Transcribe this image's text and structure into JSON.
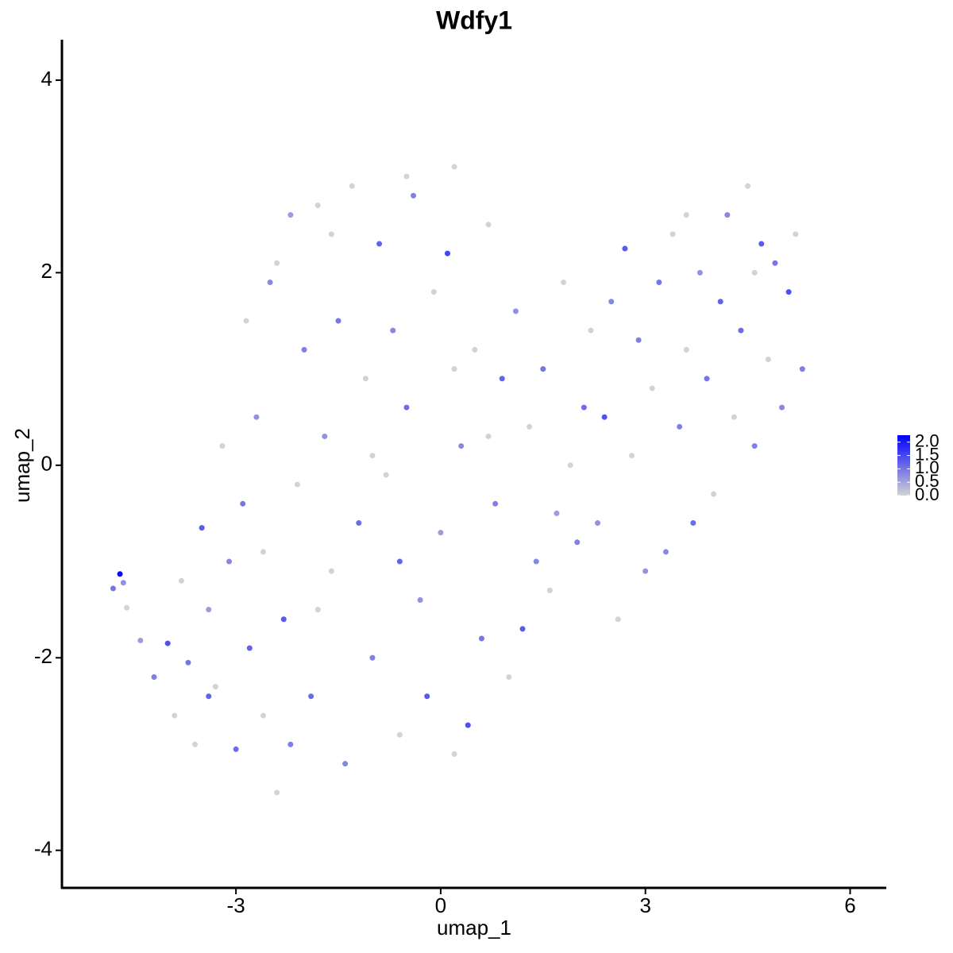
{
  "chart_data": {
    "type": "scatter",
    "title": "Wdfy1",
    "xlabel": "umap_1",
    "ylabel": "umap_2",
    "xlim": [
      -5.55,
      6.53
    ],
    "xticks": [
      -3,
      0,
      3,
      6
    ],
    "ylim": [
      -4.39,
      4.42
    ],
    "yticks": [
      -4,
      -2,
      0,
      2,
      4
    ],
    "grid": false,
    "colorbar": {
      "low": "#d3d3d3",
      "high": "#0000ff",
      "lim": [
        0,
        2.26
      ],
      "ticks": [
        {
          "value": 0,
          "label": "0.0"
        },
        {
          "value": 0.5,
          "label": "0.5"
        },
        {
          "value": 1,
          "label": "1.0"
        },
        {
          "value": 1.5,
          "label": "1.5"
        },
        {
          "value": 2,
          "label": "2.0"
        }
      ]
    },
    "x": [
      -4.7,
      -4.8,
      -4.65,
      -4.6,
      -4.4,
      -4.2,
      -4.0,
      -3.9,
      -3.7,
      -3.6,
      -3.5,
      -3.4,
      -3.3,
      -3.2,
      -3.1,
      -3.0,
      -2.9,
      -2.85,
      -2.8,
      -2.7,
      -2.6,
      -2.5,
      -2.4,
      -2.3,
      -2.2,
      -2.1,
      -2.0,
      -1.9,
      -1.8,
      -1.7,
      -1.6,
      -1.5,
      -1.4,
      -1.3,
      -1.2,
      -1.1,
      -1.0,
      -0.9,
      -0.8,
      -0.7,
      -0.6,
      -0.5,
      -0.4,
      -0.3,
      -0.2,
      -0.1,
      0.0,
      0.1,
      0.2,
      0.3,
      0.4,
      0.5,
      0.6,
      0.7,
      0.8,
      0.9,
      1.0,
      1.1,
      1.2,
      1.3,
      1.4,
      1.5,
      1.6,
      1.7,
      1.8,
      2.0,
      2.1,
      2.2,
      2.3,
      2.4,
      2.5,
      2.6,
      2.7,
      2.8,
      2.9,
      3.0,
      3.1,
      3.2,
      3.3,
      3.4,
      3.5,
      3.6,
      3.7,
      3.8,
      3.9,
      4.0,
      4.1,
      4.2,
      4.3,
      4.4,
      4.5,
      4.6,
      4.7,
      4.8,
      4.9,
      5.0,
      5.1,
      5.2,
      5.3,
      -3.8,
      -3.4,
      -2.6,
      -2.2,
      -1.8,
      -1.0,
      -0.6,
      0.2,
      0.7,
      1.9,
      3.6,
      4.6,
      -2.4,
      -1.6,
      -0.5,
      0.2
    ],
    "y": [
      -1.13,
      -1.28,
      -1.22,
      -1.48,
      -1.82,
      -2.2,
      -1.85,
      -2.6,
      -2.05,
      -2.9,
      -0.65,
      -1.5,
      -2.3,
      0.2,
      -1.0,
      -2.95,
      -0.4,
      1.5,
      -1.9,
      0.5,
      -2.6,
      1.9,
      -3.4,
      -1.6,
      2.6,
      -0.2,
      1.2,
      -2.4,
      2.7,
      0.3,
      -1.1,
      1.5,
      -3.1,
      2.9,
      -0.6,
      0.9,
      -2.0,
      2.3,
      -0.1,
      1.4,
      -2.8,
      0.6,
      2.8,
      -1.4,
      -2.4,
      1.8,
      -0.7,
      2.2,
      -3.0,
      0.2,
      -2.7,
      1.2,
      -1.8,
      2.5,
      -0.4,
      0.9,
      -2.2,
      1.6,
      -1.7,
      0.4,
      -1.0,
      1.0,
      -1.3,
      -0.5,
      1.9,
      -0.8,
      0.6,
      1.4,
      -0.6,
      0.5,
      1.7,
      -1.6,
      2.25,
      0.1,
      1.3,
      -1.1,
      0.8,
      1.9,
      -0.9,
      2.4,
      0.4,
      1.2,
      -0.6,
      2.0,
      0.9,
      -0.3,
      1.7,
      2.6,
      0.5,
      1.4,
      2.9,
      0.2,
      2.3,
      1.1,
      2.1,
      0.6,
      1.8,
      2.4,
      1.0,
      -1.2,
      -2.4,
      -0.9,
      -2.9,
      -1.5,
      0.1,
      -1.0,
      1.0,
      0.3,
      0.0,
      2.6,
      2.0,
      2.1,
      2.4,
      3.0,
      3.1
    ],
    "values": [
      2.2,
      1.0,
      0.7,
      0,
      0.6,
      0.9,
      1.4,
      0,
      1.0,
      0,
      1.3,
      0.6,
      0,
      0,
      0.8,
      1.1,
      1.0,
      0,
      1.2,
      0.7,
      0,
      0.8,
      0,
      1.3,
      0.6,
      0,
      0.9,
      1.1,
      0,
      0.7,
      0,
      1.0,
      0.8,
      0,
      1.1,
      0,
      0.9,
      1.2,
      0,
      0.8,
      0,
      1.1,
      0.9,
      0.7,
      1.3,
      0,
      0.6,
      1.5,
      0,
      0.8,
      1.4,
      0,
      1.0,
      0,
      0.9,
      1.2,
      0,
      0.7,
      1.3,
      0,
      0.8,
      1.0,
      0,
      0.6,
      0,
      0.9,
      1.1,
      0,
      0.7,
      1.4,
      0.8,
      0,
      1.3,
      0,
      0.9,
      0.7,
      0,
      1.0,
      0.8,
      0,
      0.9,
      0,
      1.1,
      0.7,
      1.0,
      0,
      1.2,
      0.8,
      0,
      1.1,
      0,
      0.9,
      1.3,
      0,
      1.0,
      0.8,
      1.4,
      0,
      0.9,
      0,
      1.2,
      0,
      0.9,
      0,
      0,
      1.2,
      0,
      0,
      0,
      0,
      0,
      0,
      0,
      0,
      0
    ]
  }
}
